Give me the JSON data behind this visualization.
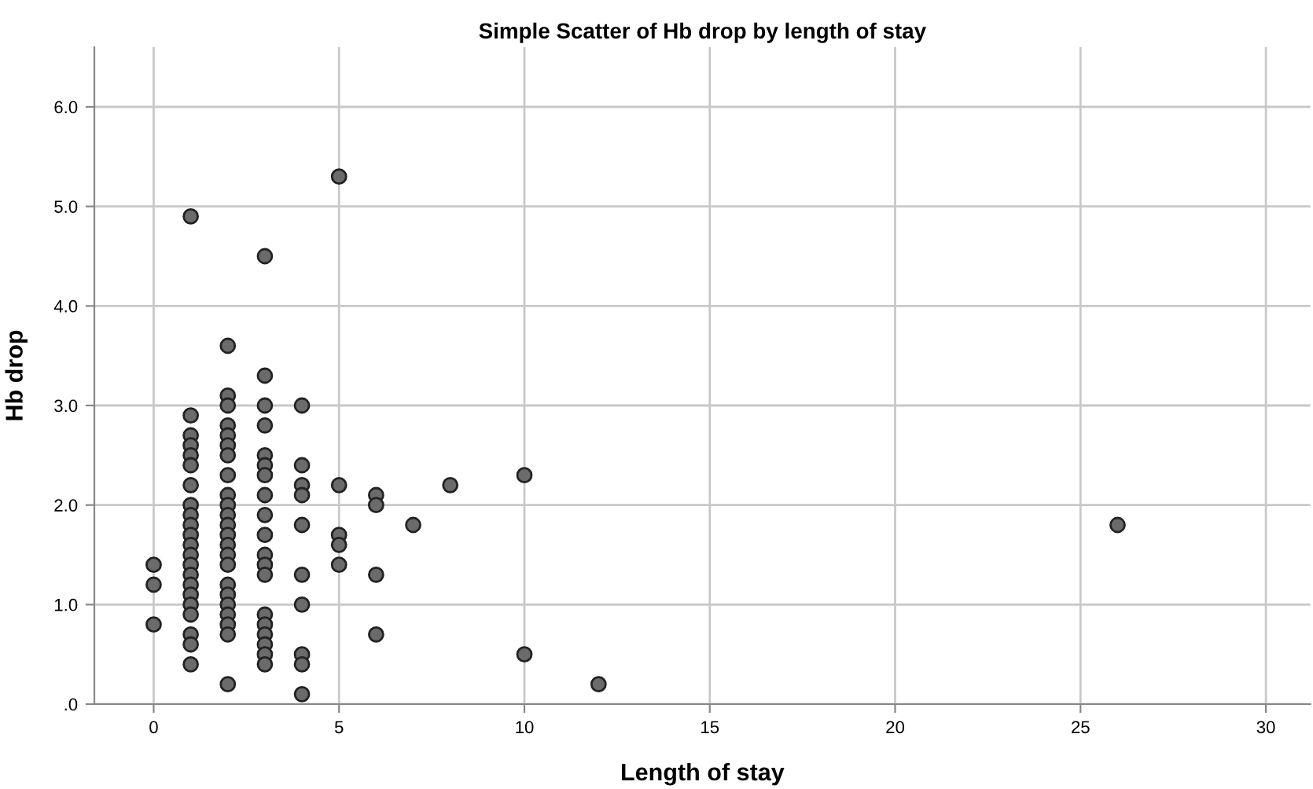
{
  "chart_data": {
    "type": "scatter",
    "title": "Simple Scatter of Hb drop by length of stay",
    "xlabel": "Length of stay",
    "ylabel": "Hb drop",
    "x": [
      0,
      0,
      0,
      1,
      1,
      1,
      1,
      1,
      1,
      1,
      1,
      1,
      1,
      1,
      1,
      1,
      1,
      1,
      1,
      1,
      1,
      1,
      1,
      1,
      1,
      2,
      2,
      2,
      2,
      2,
      2,
      2,
      2,
      2,
      2,
      2,
      2,
      2,
      2,
      2,
      2,
      2,
      2,
      2,
      2,
      2,
      2,
      2,
      3,
      3,
      3,
      3,
      3,
      3,
      3,
      3,
      3,
      3,
      3,
      3,
      3,
      3,
      3,
      3,
      3,
      3,
      3,
      4,
      4,
      4,
      4,
      4,
      4,
      4,
      4,
      4,
      4,
      5,
      5,
      5,
      5,
      5,
      6,
      6,
      6,
      6,
      7,
      8,
      10,
      10,
      12,
      26
    ],
    "values": [
      1.4,
      1.2,
      0.8,
      4.9,
      2.9,
      2.7,
      2.6,
      2.5,
      2.4,
      2.2,
      2.0,
      1.9,
      1.8,
      1.7,
      1.6,
      1.5,
      1.4,
      1.3,
      1.2,
      1.1,
      1.0,
      0.9,
      0.7,
      0.6,
      0.4,
      3.6,
      3.1,
      3.0,
      2.8,
      2.7,
      2.6,
      2.5,
      2.3,
      2.1,
      2.0,
      1.9,
      1.8,
      1.7,
      1.6,
      1.5,
      1.4,
      1.2,
      1.1,
      1.0,
      0.9,
      0.8,
      0.7,
      0.2,
      4.5,
      3.3,
      3.0,
      2.8,
      2.5,
      2.4,
      2.3,
      2.1,
      1.9,
      1.7,
      1.5,
      1.4,
      1.3,
      0.9,
      0.8,
      0.7,
      0.6,
      0.5,
      0.4,
      3.0,
      2.4,
      2.2,
      2.1,
      1.8,
      1.3,
      1.0,
      0.5,
      0.4,
      0.1,
      5.3,
      2.2,
      1.7,
      1.6,
      1.4,
      2.1,
      2.0,
      1.3,
      0.7,
      1.8,
      2.2,
      2.3,
      0.5,
      0.2,
      1.8
    ],
    "color": "#6b6b6b",
    "marker": "circle",
    "grid": true,
    "xlim": [
      -1.6,
      31.2
    ],
    "xticks": [
      0,
      5,
      10,
      15,
      20,
      25,
      30
    ],
    "ylim": [
      0,
      6.6
    ],
    "yticks": [
      {
        "value": 0,
        "label": ".0"
      },
      {
        "value": 1,
        "label": "1.0"
      },
      {
        "value": 2,
        "label": "2.0"
      },
      {
        "value": 3,
        "label": "3.0"
      },
      {
        "value": 4,
        "label": "4.0"
      },
      {
        "value": 5,
        "label": "5.0"
      },
      {
        "value": 6,
        "label": "6.0"
      }
    ]
  }
}
